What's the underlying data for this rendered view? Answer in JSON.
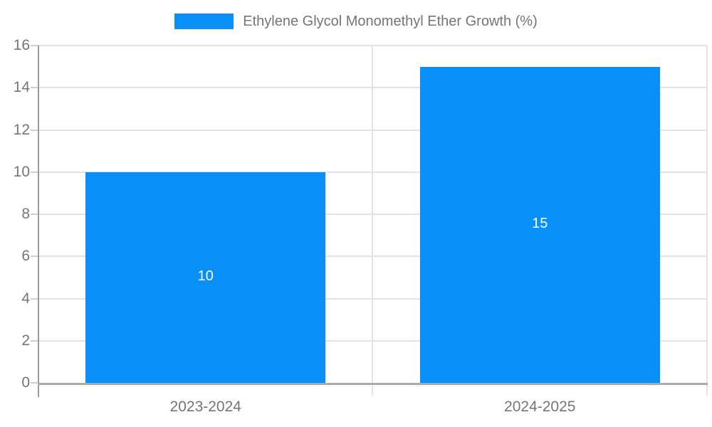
{
  "chart_data": {
    "type": "bar",
    "title": "",
    "legend_position": "top-center",
    "legend": [
      {
        "label": "Ethylene Glycol Monomethyl Ether Growth (%)",
        "color": "#0990f8"
      }
    ],
    "categories": [
      "2023-2024",
      "2024-2025"
    ],
    "series": [
      {
        "name": "Ethylene Glycol Monomethyl Ether Growth (%)",
        "color": "#0990f8",
        "values": [
          10,
          15
        ]
      }
    ],
    "bar_value_labels": [
      "10",
      "15"
    ],
    "ylabel": "",
    "xlabel": "",
    "ylim": [
      0,
      16
    ],
    "yticks": [
      0,
      2,
      4,
      6,
      8,
      10,
      12,
      14,
      16
    ],
    "grid": true,
    "colors": {
      "bar": "#0990f8",
      "axis_text": "#757575",
      "gridline": "#e3e3e3",
      "tick_mark": "#cfcfcf",
      "y_axis_line": "#9b9b9b",
      "x_axis_line": "#ababab",
      "value_label": "#ffffff",
      "background": "#ffffff"
    }
  }
}
